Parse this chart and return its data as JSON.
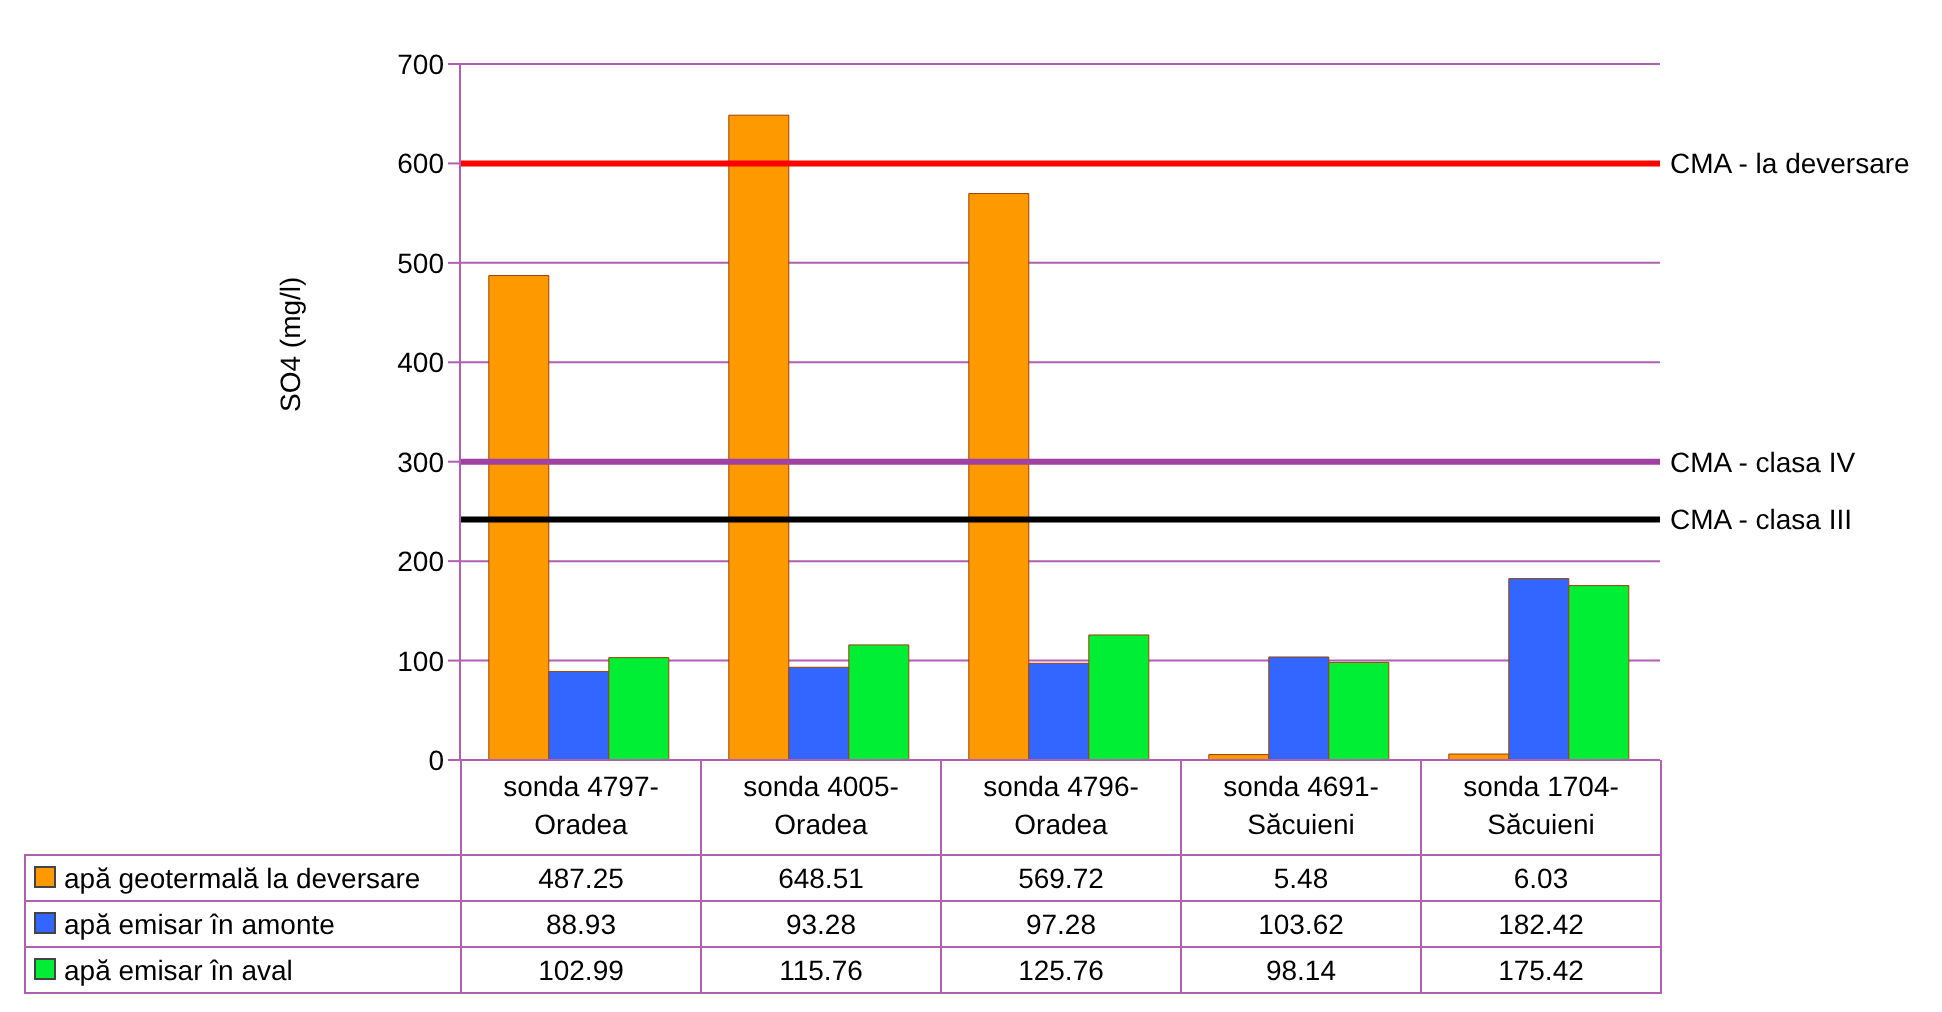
{
  "chart_data": {
    "type": "bar",
    "ylabel": "SO4 (mg/l)",
    "categories": [
      "sonda 4797-Oradea",
      "sonda 4005-Oradea",
      "sonda 4796-Oradea",
      "sonda 4691-Săcuieni",
      "sonda 1704-Săcuieni"
    ],
    "series": [
      {
        "name": "apă geotermală la deversare",
        "color": "#ff9900",
        "values": [
          487.25,
          648.51,
          569.72,
          5.48,
          6.03
        ]
      },
      {
        "name": "apă emisar în amonte",
        "color": "#3366ff",
        "values": [
          88.93,
          93.28,
          97.28,
          103.62,
          182.42
        ]
      },
      {
        "name": "apă emisar în aval",
        "color": "#00ee33",
        "values": [
          102.99,
          115.76,
          125.76,
          98.14,
          175.42
        ]
      }
    ],
    "ylim": [
      0,
      700
    ],
    "yticks": [
      0,
      100,
      200,
      300,
      400,
      500,
      600,
      700
    ],
    "grid": "y",
    "legend": "bottom",
    "data_labels": true,
    "ref_lines": [
      {
        "axis": "y",
        "value": 600,
        "label": "CMA - la deversare",
        "color": "#ff0000"
      },
      {
        "axis": "y",
        "value": 300,
        "label": "CMA - clasa IV",
        "color": "#a040a0"
      },
      {
        "axis": "y",
        "value": 242,
        "label": "CMA - clasa III",
        "color": "#000000"
      }
    ]
  }
}
